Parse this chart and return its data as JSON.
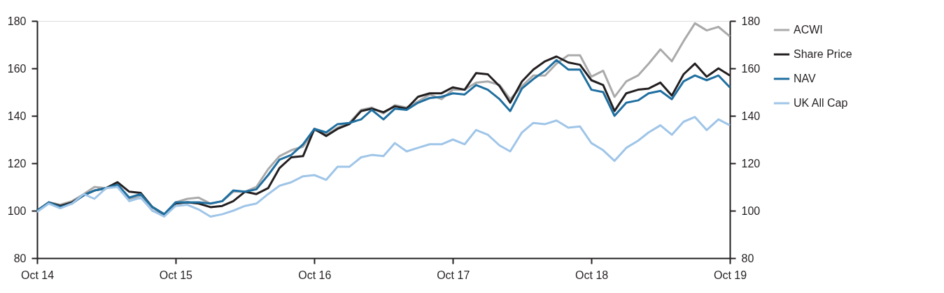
{
  "chart_data": {
    "type": "line",
    "x": [
      "2014-10",
      "2014-11",
      "2014-12",
      "2015-01",
      "2015-02",
      "2015-03",
      "2015-04",
      "2015-05",
      "2015-06",
      "2015-07",
      "2015-08",
      "2015-09",
      "2015-10",
      "2015-11",
      "2015-12",
      "2016-01",
      "2016-02",
      "2016-03",
      "2016-04",
      "2016-05",
      "2016-06",
      "2016-07",
      "2016-08",
      "2016-09",
      "2016-10",
      "2016-11",
      "2016-12",
      "2017-01",
      "2017-02",
      "2017-03",
      "2017-04",
      "2017-05",
      "2017-06",
      "2017-07",
      "2017-08",
      "2017-09",
      "2017-10",
      "2017-11",
      "2017-12",
      "2018-01",
      "2018-02",
      "2018-03",
      "2018-04",
      "2018-05",
      "2018-06",
      "2018-07",
      "2018-08",
      "2018-09",
      "2018-10",
      "2018-11",
      "2018-12",
      "2019-01",
      "2019-02",
      "2019-03",
      "2019-04",
      "2019-05",
      "2019-06",
      "2019-07",
      "2019-08",
      "2019-09",
      "2019-10"
    ],
    "series": [
      {
        "name": "ACWI",
        "color": "#aaaaaa",
        "values": [
          100,
          103.5,
          102.5,
          104,
          107,
          110,
          109.5,
          111.5,
          105,
          106,
          100,
          98,
          103.5,
          105,
          105.5,
          103,
          104,
          108,
          108,
          110,
          117.5,
          123,
          125.5,
          127,
          134,
          132,
          135,
          137,
          142.5,
          143.5,
          141,
          144.5,
          143.5,
          146,
          149,
          147,
          151,
          151,
          154,
          154.5,
          153,
          147,
          152.5,
          157,
          157,
          162,
          165.5,
          165.5,
          156.5,
          159,
          148,
          154.5,
          157,
          162,
          168,
          163,
          171.5,
          179,
          176,
          177.5,
          173.5
        ]
      },
      {
        "name": "Share Price",
        "color": "#231f20",
        "values": [
          100,
          103.5,
          102,
          103.5,
          106.5,
          108.5,
          109.5,
          112,
          108,
          107.5,
          101.5,
          98.5,
          103,
          103.5,
          103,
          101.5,
          102,
          104,
          108,
          107,
          109.5,
          118,
          122.5,
          123,
          134.5,
          131.5,
          134.5,
          136.5,
          142,
          143,
          141.5,
          144,
          143,
          148,
          149.5,
          149.5,
          152,
          151,
          158,
          157.5,
          152.5,
          145.5,
          154.5,
          159.5,
          163,
          165,
          162.5,
          161.5,
          155,
          153,
          142,
          149.5,
          151,
          151.5,
          154,
          148.5,
          157.5,
          162,
          156.5,
          160,
          157
        ]
      },
      {
        "name": "NAV",
        "color": "#1f6fa0",
        "values": [
          100,
          103.5,
          101.5,
          103,
          106.5,
          108.5,
          109.5,
          111,
          105.5,
          107,
          101.5,
          98.5,
          103.5,
          103.5,
          103.5,
          103,
          104,
          108.5,
          108,
          109,
          115,
          121.5,
          123.5,
          128,
          134.5,
          133,
          136.5,
          137,
          138.5,
          142.5,
          138.5,
          143,
          142.5,
          145.5,
          147.5,
          148,
          149.5,
          149,
          153,
          151,
          147,
          142,
          151.5,
          155.5,
          159,
          163.5,
          159.5,
          159.5,
          151,
          150,
          140,
          145.5,
          146.5,
          149.5,
          150.5,
          147,
          154.5,
          157,
          155,
          157,
          152
        ]
      },
      {
        "name": "UK All Cap",
        "color": "#9fc5e8",
        "values": [
          99.5,
          103,
          101,
          103,
          107,
          105,
          109.5,
          110,
          104,
          105.5,
          100,
          97.5,
          102,
          102.5,
          100.5,
          97.5,
          98.5,
          100,
          102,
          103,
          107,
          110.5,
          112,
          114.5,
          115,
          113,
          118.5,
          118.5,
          122.5,
          123.5,
          123,
          128.5,
          125,
          126.5,
          128,
          128,
          130,
          128,
          134,
          132,
          127.5,
          125,
          133,
          137,
          136.5,
          138,
          135,
          135.5,
          128.5,
          125.5,
          121,
          126.5,
          129.5,
          133,
          136,
          132,
          137.5,
          139.5,
          134,
          138.5,
          136
        ]
      }
    ],
    "xlim": [
      "2014-10",
      "2019-10"
    ],
    "xticks": [
      {
        "value": "2014-10",
        "label": "Oct 14"
      },
      {
        "value": "2015-10",
        "label": "Oct 15"
      },
      {
        "value": "2016-10",
        "label": "Oct 16"
      },
      {
        "value": "2017-10",
        "label": "Oct 17"
      },
      {
        "value": "2018-10",
        "label": "Oct 18"
      },
      {
        "value": "2019-10",
        "label": "Oct 19"
      }
    ],
    "ylim": [
      80,
      180
    ],
    "yticks": [
      80,
      100,
      120,
      140,
      160,
      180
    ],
    "y2lim": [
      80,
      180
    ],
    "y2ticks": [
      80,
      100,
      120,
      140,
      160,
      180
    ],
    "grid": false,
    "legend": "right",
    "marker": "none",
    "line_style": "solid"
  }
}
